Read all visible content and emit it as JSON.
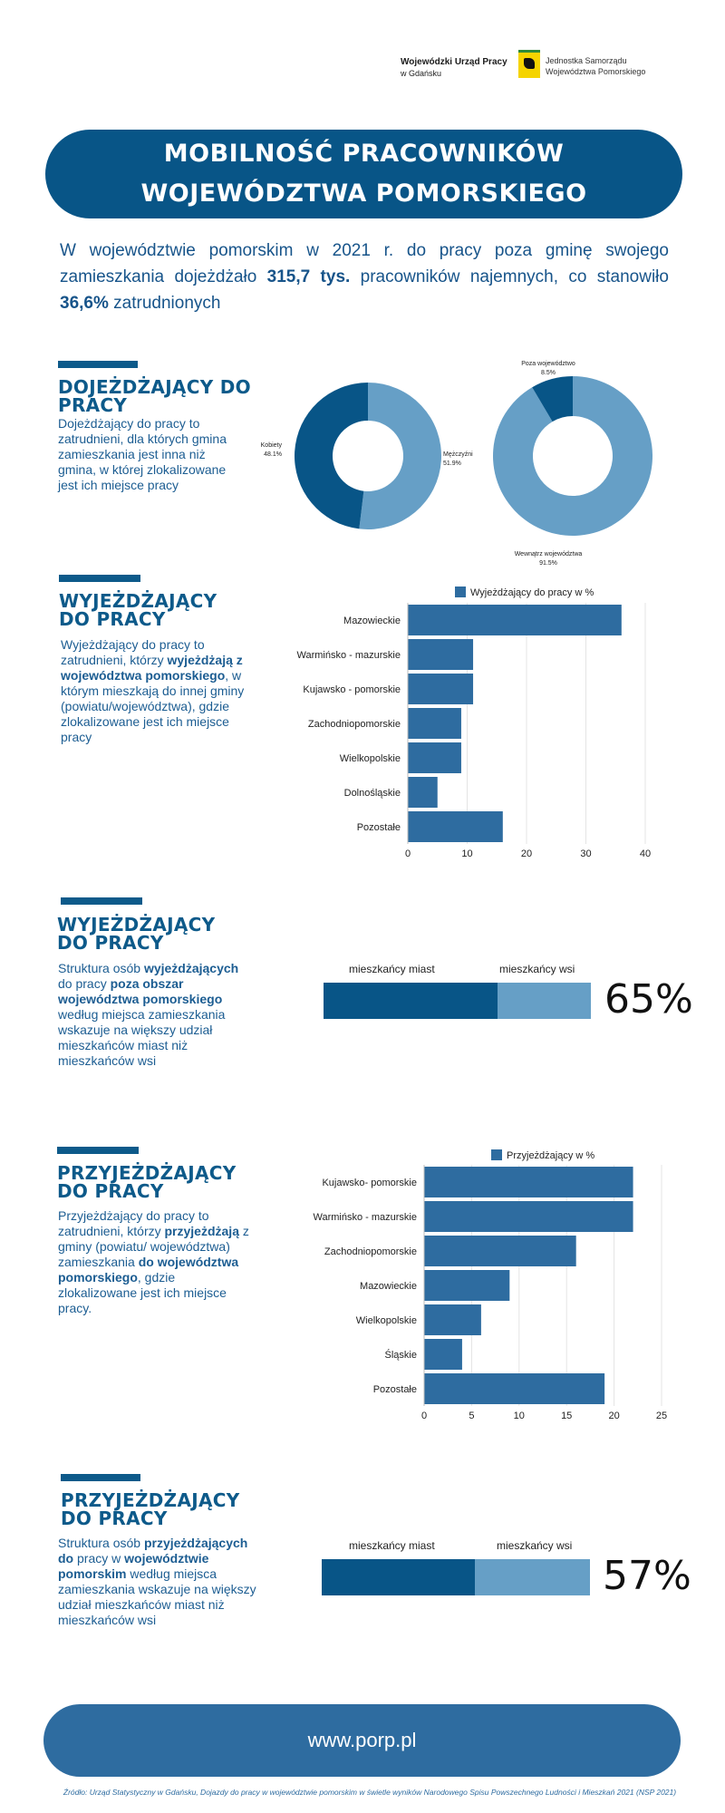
{
  "logos": {
    "wup_line1": "Wojewódzki Urząd Pracy",
    "wup_line2": "w Gdańsku",
    "js_line1": "Jednostka Samorządu",
    "js_line2": "Województwa Pomorskiego"
  },
  "header": {
    "title_line1": "MOBILNOŚĆ PRACOWNIKÓW",
    "title_line2": "WOJEWÓDZTWA POMORSKIEGO"
  },
  "intro": {
    "part1": "W województwie pomorskim w 2021 r. do pracy poza gminę swojego zamieszkania dojeżdżało ",
    "bold1": "315,7 tys.",
    "part2": " pracowników najemnych, co stanowiło ",
    "bold2": "36,6%",
    "part3": " zatrudnionych"
  },
  "sections": {
    "s1": {
      "title1": "DOJEŻDŻAJĄCY DO",
      "title2": "PRACY",
      "desc": "Dojeżdżający do pracy to zatrudnieni, dla których gmina zamieszkania jest inna niż gmina, w której zlokalizowane jest ich miejsce pracy"
    },
    "s2": {
      "title1": "WYJEŻDŻAJĄCY",
      "title2": "DO PRACY",
      "desc_a": "Wyjeżdżający do pracy to zatrudnieni, którzy ",
      "desc_b": "wyjeżdżają z województwa pomorskiego",
      "desc_c": ", w którym mieszkają do innej gminy (powiatu/województwa), gdzie zlokalizowane jest ich miejsce pracy"
    },
    "s3": {
      "title1": "WYJEŻDŻAJĄCY",
      "title2": "DO PRACY",
      "desc_a": "Struktura osób ",
      "desc_b": "wyjeżdżających",
      "desc_c": " do pracy ",
      "desc_d": "poza obszar województwa pomorskiego",
      "desc_e": " według miejsca zamieszkania wskazuje na większy udział mieszkańców miast niż mieszkańców wsi",
      "label_left": "mieszkańcy miast",
      "label_right": "mieszkańcy wsi",
      "pct_label": "65%"
    },
    "s4": {
      "title1": "PRZYJEŻDŻAJĄCY",
      "title2": "DO PRACY",
      "desc_a": "Przyjeżdżający do pracy to zatrudnieni, którzy ",
      "desc_b": "przyjeżdżają",
      "desc_c": " z gminy (powiatu/ województwa) zamieszkania ",
      "desc_d": "do województwa pomorskiego",
      "desc_e": ", gdzie zlokalizowane jest ich miejsce pracy."
    },
    "s5": {
      "title1": "PRZYJEŻDŻAJĄCY",
      "title2": "DO PRACY",
      "desc_a": "Struktura osób ",
      "desc_b": "przyjeżdżających do",
      "desc_c": " pracy w ",
      "desc_d": "województwie pomorskim",
      "desc_e": " według miejsca zamieszkania wskazuje na większy udział mieszkańców miast niż mieszkańców wsi",
      "label_left": "mieszkańcy miast",
      "label_right": "mieszkańcy wsi",
      "pct_label": "57%"
    }
  },
  "chart_data": [
    {
      "type": "pie",
      "donut": true,
      "slices": [
        {
          "label": "Mężczyźni",
          "value": 51.9,
          "text": "Mężczyźni\n51.9%",
          "color": "#669fc6"
        },
        {
          "label": "Kobiety",
          "value": 48.1,
          "text": "Kobiety\n48.1%",
          "color": "#085587"
        }
      ]
    },
    {
      "type": "pie",
      "donut": true,
      "slices": [
        {
          "label": "Wewnątrz województwa",
          "value": 91.5,
          "text": "Wewnątrz województwa\n91.5%",
          "color": "#669fc6"
        },
        {
          "label": "Poza województwo",
          "value": 8.5,
          "text": "Poza województwo\n8.5%",
          "color": "#085587"
        }
      ]
    },
    {
      "type": "bar",
      "orientation": "horizontal",
      "legend": "Wyjeżdżający do pracy w %",
      "categories": [
        "Mazowieckie",
        "Warmińsko - mazurskie",
        "Kujawsko - pomorskie",
        "Zachodniopomorskie",
        "Wielkopolskie",
        "Dolnośląskie",
        "Pozostałe"
      ],
      "values": [
        36,
        11,
        11,
        9,
        9,
        5,
        16
      ],
      "xlim": [
        0,
        40
      ],
      "ticks": [
        "0",
        "10",
        "20",
        "30",
        "40"
      ],
      "color": "#2e6ca0"
    },
    {
      "type": "bar",
      "orientation": "horizontal",
      "legend": "Przyjeżdżający w %",
      "categories": [
        "Kujawsko- pomorskie",
        "Warmińsko - mazurskie",
        "Zachodniopomorskie",
        "Mazowieckie",
        "Wielkopolskie",
        "Śląskie",
        "Pozostałe"
      ],
      "values": [
        22,
        22,
        16,
        9,
        6,
        4,
        19
      ],
      "xlim": [
        0,
        25
      ],
      "ticks": [
        "0",
        "5",
        "10",
        "15",
        "20",
        "25"
      ],
      "color": "#2e6ca0"
    },
    {
      "type": "bar",
      "orientation": "horizontal",
      "stacked": true,
      "categories": [
        "mieszkańcy miast",
        "mieszkańcy wsi"
      ],
      "values": [
        65,
        35
      ],
      "colors": [
        "#085587",
        "#669fc6"
      ]
    },
    {
      "type": "bar",
      "orientation": "horizontal",
      "stacked": true,
      "categories": [
        "mieszkańcy miast",
        "mieszkańcy wsi"
      ],
      "values": [
        57,
        43
      ],
      "colors": [
        "#085587",
        "#669fc6"
      ]
    }
  ],
  "footer": {
    "url": "www.porp.pl",
    "source": "Źródło: Urząd Statystyczny w Gdańsku, Dojazdy do pracy w województwie pomorskim w świetle wyników Narodowego Spisu Powszechnego Ludności i Mieszkań 2021 (NSP 2021)"
  }
}
